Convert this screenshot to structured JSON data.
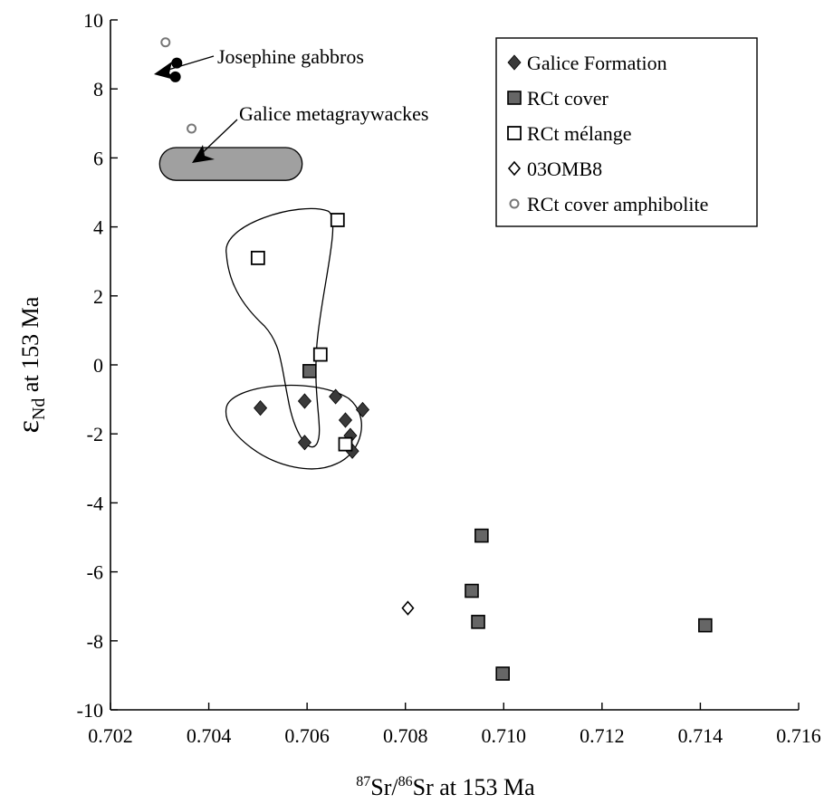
{
  "chart_data": {
    "type": "scatter",
    "title": "",
    "xlabel": {
      "sup1": "87",
      "mid": "Sr/",
      "sup2": "86",
      "rest": "Sr at 153 Ma"
    },
    "ylabel": {
      "main": "ε",
      "sub": "Nd",
      "rest": " at 153 Ma"
    },
    "xlim": [
      0.702,
      0.716
    ],
    "ylim": [
      -10,
      10
    ],
    "x_ticks": [
      "0.702",
      "0.704",
      "0.706",
      "0.708",
      "0.710",
      "0.712",
      "0.714",
      "0.716"
    ],
    "y_ticks": [
      "-10",
      "-8",
      "-6",
      "-4",
      "-2",
      "0",
      "2",
      "4",
      "6",
      "8",
      "10"
    ],
    "grid": false,
    "legend_position": "top-right",
    "series": [
      {
        "name": "Galice Formation",
        "marker": "filled-diamond",
        "color": "#3a3a3a",
        "points": [
          {
            "x": 0.70505,
            "y": -1.25
          },
          {
            "x": 0.70595,
            "y": -1.05
          },
          {
            "x": 0.70595,
            "y": -2.25
          },
          {
            "x": 0.70658,
            "y": -0.92
          },
          {
            "x": 0.70678,
            "y": -1.6
          },
          {
            "x": 0.70688,
            "y": -2.05
          },
          {
            "x": 0.70692,
            "y": -2.5
          },
          {
            "x": 0.70713,
            "y": -1.3
          }
        ]
      },
      {
        "name": "RCt cover",
        "marker": "filled-square",
        "color": "#666666",
        "points": [
          {
            "x": 0.70605,
            "y": -0.18
          },
          {
            "x": 0.70955,
            "y": -4.95
          },
          {
            "x": 0.70935,
            "y": -6.55
          },
          {
            "x": 0.70948,
            "y": -7.45
          },
          {
            "x": 0.70998,
            "y": -8.95
          },
          {
            "x": 0.7141,
            "y": -7.55
          }
        ]
      },
      {
        "name": "RCt mélange",
        "marker": "open-square",
        "color": "#000000",
        "points": [
          {
            "x": 0.705,
            "y": 3.1
          },
          {
            "x": 0.70662,
            "y": 4.2
          },
          {
            "x": 0.70627,
            "y": 0.3
          },
          {
            "x": 0.70678,
            "y": -2.3
          }
        ]
      },
      {
        "name": "03OMB8",
        "marker": "open-diamond",
        "color": "#000000",
        "points": [
          {
            "x": 0.70805,
            "y": -7.05
          }
        ]
      },
      {
        "name": "RCt cover amphibolite",
        "marker": "open-circle",
        "color": "#777777",
        "points": [
          {
            "x": 0.70312,
            "y": 9.35
          },
          {
            "x": 0.70365,
            "y": 6.85
          }
        ]
      },
      {
        "name": "Josephine gabbros",
        "marker": "filled-circle",
        "color": "#000000",
        "in_legend": false,
        "points": [
          {
            "x": 0.70335,
            "y": 8.75
          },
          {
            "x": 0.70332,
            "y": 8.35
          }
        ]
      }
    ],
    "regions": {
      "galice_metagraywackes": {
        "x_min": 0.703,
        "x_max": 0.7059,
        "y_min": 5.35,
        "y_max": 6.3,
        "color": "#a0a0a0"
      }
    },
    "annotations": {
      "josephine": "Josephine gabbros",
      "metagraywackes": "Galice metagraywackes"
    }
  }
}
